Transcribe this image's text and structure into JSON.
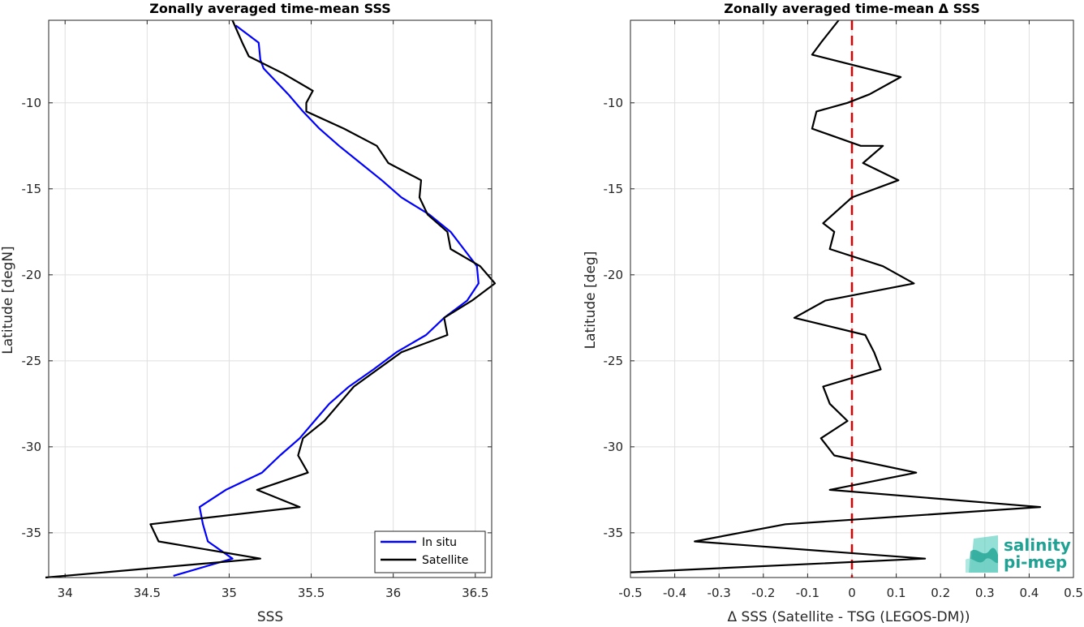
{
  "colors": {
    "in_situ": "#0000ff",
    "satellite": "#000000",
    "zero_line": "#dd0000",
    "logo": "#1fa293"
  },
  "logo": {
    "line1": "salinity",
    "line2": "pi-mep",
    "icon": "salinity-wave-icon"
  },
  "chart_data": [
    {
      "type": "line",
      "title": "Zonally averaged time-mean SSS",
      "xlabel": "SSS",
      "ylabel": "Latitude [degN]",
      "xlim": [
        33.9,
        36.6
      ],
      "ylim": [
        -37.6,
        -5.2
      ],
      "xticks": [
        34,
        34.5,
        35,
        35.5,
        36,
        36.5
      ],
      "yticks": [
        -35,
        -30,
        -25,
        -20,
        -15,
        -10
      ],
      "xtick_labels": [
        "34",
        "34.5",
        "35",
        "35.5",
        "36",
        "36.5"
      ],
      "ytick_labels": [
        "-35",
        "-30",
        "-25",
        "-20",
        "-15",
        "-10"
      ],
      "grid": true,
      "legend_position": "bottom-right",
      "series": [
        {
          "name": "In situ",
          "color": "#0000ff",
          "x": [
            35.04,
            35.18,
            35.19,
            35.21,
            35.26,
            35.36,
            35.45,
            35.55,
            35.67,
            35.8,
            35.93,
            36.05,
            36.22,
            36.35,
            36.43,
            36.51,
            36.52,
            36.45,
            36.31,
            36.2,
            36.02,
            35.88,
            35.73,
            35.61,
            35.52,
            35.43,
            35.31,
            35.2,
            34.98,
            34.82,
            34.84,
            34.87,
            35.02,
            34.66
          ],
          "y": [
            -5.5,
            -6.5,
            -7.5,
            -8.0,
            -8.5,
            -9.5,
            -10.5,
            -11.5,
            -12.5,
            -13.5,
            -14.5,
            -15.5,
            -16.5,
            -17.5,
            -18.5,
            -19.5,
            -20.5,
            -21.5,
            -22.5,
            -23.5,
            -24.5,
            -25.5,
            -26.5,
            -27.5,
            -28.5,
            -29.5,
            -30.5,
            -31.5,
            -32.5,
            -33.5,
            -34.5,
            -35.5,
            -36.5,
            -37.5
          ]
        },
        {
          "name": "Satellite",
          "color": "#000000",
          "x": [
            35.02,
            35.08,
            35.12,
            35.33,
            35.51,
            35.47,
            35.47,
            35.7,
            35.9,
            35.97,
            36.17,
            36.16,
            36.21,
            36.33,
            36.35,
            36.53,
            36.62,
            36.48,
            36.31,
            36.33,
            36.05,
            35.76,
            35.67,
            35.58,
            35.45,
            35.42,
            35.48,
            35.17,
            35.43,
            34.52,
            34.57,
            35.19,
            33.88
          ],
          "y": [
            -5.2,
            -6.5,
            -7.3,
            -8.3,
            -9.3,
            -10.0,
            -10.5,
            -11.5,
            -12.5,
            -13.5,
            -14.5,
            -15.5,
            -16.5,
            -17.5,
            -18.5,
            -19.5,
            -20.5,
            -21.5,
            -22.5,
            -23.5,
            -24.5,
            -26.5,
            -27.5,
            -28.5,
            -29.5,
            -30.5,
            -31.5,
            -32.5,
            -33.5,
            -34.5,
            -35.5,
            -36.5,
            -37.6
          ]
        }
      ]
    },
    {
      "type": "line",
      "title": "Zonally averaged time-mean Δ SSS",
      "xlabel": "Δ SSS (Satellite - TSG (LEGOS-DM))",
      "ylabel": "Latitude [deg]",
      "xlim": [
        -0.5,
        0.5
      ],
      "ylim": [
        -37.6,
        -5.2
      ],
      "xticks": [
        -0.5,
        -0.4,
        -0.3,
        -0.2,
        -0.1,
        0,
        0.1,
        0.2,
        0.3,
        0.4,
        0.5
      ],
      "yticks": [
        -35,
        -30,
        -25,
        -20,
        -15,
        -10
      ],
      "xtick_labels": [
        "-0.5",
        "-0.4",
        "-0.3",
        "-0.2",
        "-0.1",
        "0",
        "0.1",
        "0.2",
        "0.3",
        "0.4",
        "0.5"
      ],
      "ytick_labels": [
        "-35",
        "-30",
        "-25",
        "-20",
        "-15",
        "-10"
      ],
      "grid": true,
      "reference_line": {
        "x": 0,
        "style": "dashed",
        "color": "#dd0000"
      },
      "series": [
        {
          "name": "",
          "color": "#000000",
          "x": [
            -0.03,
            -0.07,
            -0.09,
            0.11,
            0.04,
            -0.01,
            -0.08,
            -0.09,
            0.02,
            0.07,
            0.025,
            0.105,
            0.0,
            -0.065,
            -0.04,
            -0.05,
            0.07,
            0.14,
            -0.06,
            -0.13,
            0.03,
            0.05,
            0.065,
            -0.065,
            -0.05,
            -0.01,
            -0.07,
            -0.04,
            0.145,
            -0.05,
            0.425,
            -0.15,
            -0.355,
            0.165,
            -0.5
          ],
          "y": [
            -5.2,
            -6.5,
            -7.2,
            -8.5,
            -9.5,
            -10.0,
            -10.5,
            -11.5,
            -12.5,
            -12.5,
            -13.5,
            -14.5,
            -15.5,
            -17.0,
            -17.5,
            -18.5,
            -19.5,
            -20.5,
            -21.5,
            -22.5,
            -23.5,
            -24.5,
            -25.5,
            -26.5,
            -27.5,
            -28.5,
            -29.5,
            -30.5,
            -31.5,
            -32.5,
            -33.5,
            -34.5,
            -35.5,
            -36.5,
            -37.3
          ]
        }
      ]
    }
  ]
}
